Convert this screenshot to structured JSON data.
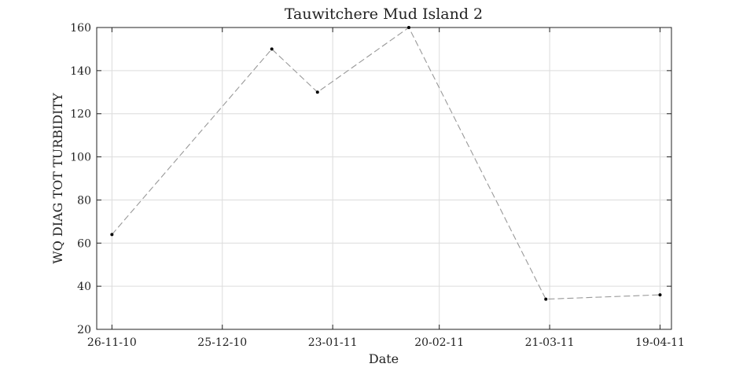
{
  "chart_data": {
    "type": "line",
    "title": "Tauwitchere Mud Island 2",
    "xlabel": "Date",
    "ylabel": "WQ DIAG TOT TURBIDITY",
    "xlim": [
      "2010-11-22",
      "2011-04-22"
    ],
    "ylim": [
      20,
      160
    ],
    "x_ticks": [
      {
        "date": "2010-11-26",
        "label": "26-11-10"
      },
      {
        "date": "2010-12-25",
        "label": "25-12-10"
      },
      {
        "date": "2011-01-23",
        "label": "23-01-11"
      },
      {
        "date": "2011-02-20",
        "label": "20-02-11"
      },
      {
        "date": "2011-03-21",
        "label": "21-03-11"
      },
      {
        "date": "2011-04-19",
        "label": "19-04-11"
      }
    ],
    "y_ticks": [
      20,
      40,
      60,
      80,
      100,
      120,
      140,
      160
    ],
    "grid": true,
    "series": [
      {
        "color": "#999999",
        "marker_color": "#000000",
        "points": [
          {
            "x": "2010-11-26",
            "y": 64
          },
          {
            "x": "2011-01-07",
            "y": 150
          },
          {
            "x": "2011-01-19",
            "y": 130
          },
          {
            "x": "2011-02-12",
            "y": 160
          },
          {
            "x": "2011-03-20",
            "y": 34
          },
          {
            "x": "2011-04-19",
            "y": 36
          }
        ]
      }
    ]
  }
}
